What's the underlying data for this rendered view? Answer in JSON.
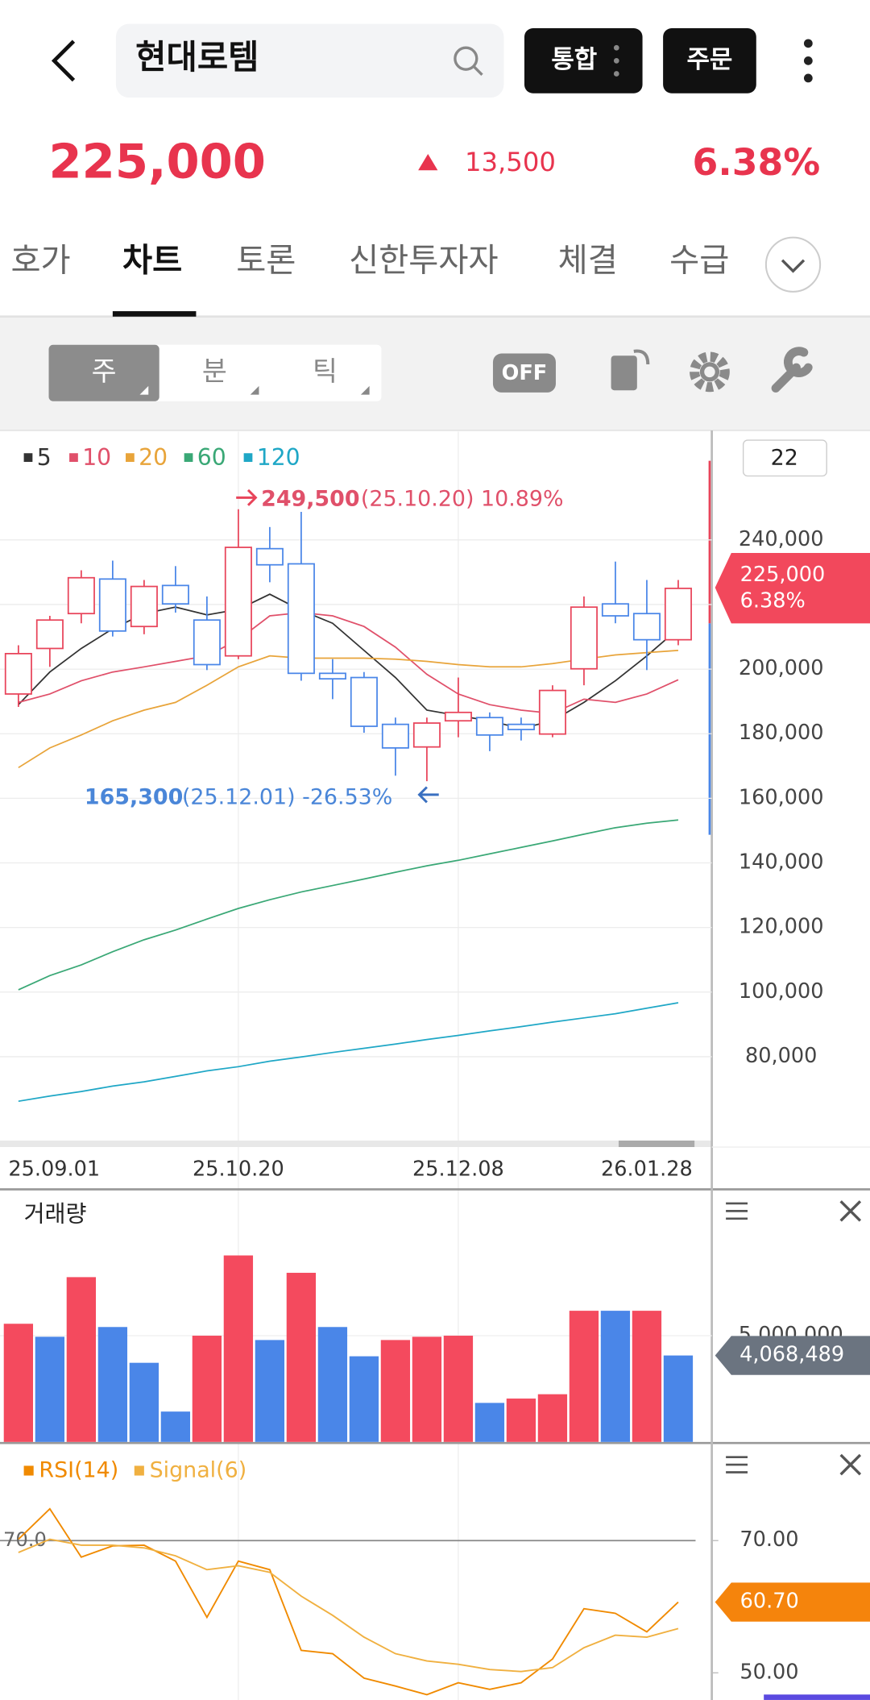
{
  "header": {
    "search": "현대로템",
    "buttons": [
      "통합",
      "주문"
    ]
  },
  "price": {
    "current": "225,000",
    "change": "13,500",
    "rate": "6.38%"
  },
  "tabs": {
    "items": [
      "호가",
      "차트",
      "토론",
      "신한투자자",
      "체결",
      "수급"
    ],
    "active": 1
  },
  "toolbar": {
    "periods": [
      "주",
      "분",
      "틱"
    ],
    "selected": 0,
    "toggle": "OFF"
  },
  "chart_data": [
    {
      "type": "candlestick",
      "visible_count": "22",
      "categories": [
        "25.09.01",
        null,
        null,
        null,
        null,
        null,
        null,
        "25.10.20",
        null,
        null,
        null,
        null,
        null,
        null,
        "25.12.08",
        null,
        null,
        null,
        null,
        null,
        "26.01.28",
        null
      ],
      "open": [
        192300,
        206400,
        217200,
        227900,
        213200,
        225900,
        215200,
        204100,
        237300,
        232600,
        198700,
        197400,
        182900,
        175900,
        184000,
        185000,
        182900,
        179900,
        200100,
        220200,
        217200,
        209100
      ],
      "high": [
        207400,
        216500,
        230600,
        233600,
        227600,
        231900,
        222500,
        249500,
        244000,
        248700,
        203100,
        199100,
        185000,
        185000,
        197400,
        186600,
        185000,
        195000,
        222500,
        233300,
        227600,
        227600
      ],
      "low": [
        188300,
        200700,
        214200,
        210100,
        210800,
        217500,
        199700,
        203100,
        226900,
        196400,
        190700,
        180300,
        167000,
        165300,
        178900,
        174600,
        177900,
        178900,
        195000,
        214200,
        199700,
        207400
      ],
      "close": [
        204800,
        215200,
        228300,
        211800,
        225600,
        220200,
        201400,
        237700,
        232300,
        198700,
        197000,
        182300,
        175600,
        183300,
        186600,
        179600,
        181300,
        193400,
        219200,
        216500,
        209100,
        225000
      ],
      "close_labels": [
        null,
        null,
        null,
        null,
        null,
        null,
        null,
        null,
        null,
        null,
        null,
        null,
        null,
        null,
        null,
        null,
        null,
        null,
        null,
        null,
        null,
        "225,000"
      ],
      "last_rate": "6.38%",
      "up_color": "#e8445a",
      "down_color": "#4a86e8",
      "series": [
        {
          "name": "5",
          "color": "#333333",
          "values": [
            189000,
            199100,
            206400,
            212500,
            217200,
            219200,
            216800,
            218500,
            223200,
            218200,
            214200,
            205800,
            197400,
            187300,
            185600,
            184000,
            181600,
            184000,
            189700,
            196400,
            204100,
            212500
          ]
        },
        {
          "name": "10",
          "color": "#e0506a",
          "values": [
            189700,
            192300,
            196400,
            199100,
            200700,
            202400,
            204100,
            209100,
            216500,
            217500,
            216500,
            213200,
            206800,
            198400,
            192300,
            189000,
            187300,
            186300,
            190700,
            189700,
            192300,
            196700
          ]
        },
        {
          "name": "20",
          "color": "#e8a43a",
          "values": [
            169500,
            175600,
            179600,
            184000,
            187300,
            189700,
            195000,
            200700,
            204100,
            203400,
            203400,
            203400,
            203100,
            202400,
            201400,
            200700,
            200700,
            201700,
            203100,
            204400,
            205100,
            205800
          ]
        },
        {
          "name": "60",
          "color": "#3aa876",
          "values": [
            100700,
            105100,
            108400,
            112500,
            116200,
            119200,
            122600,
            125900,
            128600,
            131000,
            133000,
            135000,
            137100,
            139100,
            140800,
            142800,
            144800,
            146800,
            148900,
            150900,
            152300,
            153300
          ]
        },
        {
          "name": "120",
          "color": "#1fa7c6",
          "values": [
            66200,
            67800,
            69200,
            70900,
            72200,
            73900,
            75600,
            76900,
            78600,
            79900,
            81300,
            82600,
            83900,
            85300,
            86600,
            88000,
            89300,
            90700,
            92000,
            93300,
            95000,
            96700
          ]
        }
      ],
      "annotations": [
        {
          "value": "249,500",
          "detail": "(25.10.20) 10.89%"
        },
        {
          "value": "165,300",
          "detail": "(25.12.01) -26.53%"
        }
      ],
      "ylim": [
        54700,
        272900
      ],
      "yticks": [
        {
          "value": 80000,
          "label": "80,000"
        },
        {
          "value": 100000,
          "label": "100,000"
        },
        {
          "value": 120000,
          "label": "120,000"
        },
        {
          "value": 140000,
          "label": "140,000"
        },
        {
          "value": 160000,
          "label": "160,000"
        },
        {
          "value": 180000,
          "label": "180,000"
        },
        {
          "value": 200000,
          "label": "200,000"
        },
        {
          "value": 220000,
          "label": "220,000"
        },
        {
          "value": 240000,
          "label": "240,000"
        }
      ],
      "grid": true
    },
    {
      "type": "bar",
      "title": "거래량",
      "values": [
        5561000,
        4949000,
        7755000,
        5408000,
        3724000,
        1429000,
        5000000,
        8776000,
        4796000,
        7959000,
        5408000,
        4031000,
        4796000,
        4949000,
        5000000,
        1837000,
        2041000,
        2245000,
        6173000,
        6173000,
        6173000,
        4068489
      ],
      "value_labels": [
        null,
        null,
        null,
        null,
        null,
        null,
        null,
        null,
        null,
        null,
        null,
        null,
        null,
        null,
        null,
        null,
        null,
        null,
        null,
        null,
        null,
        "4,068,489"
      ],
      "colors": [
        "#f44a5e",
        "#4a86e8",
        "#f44a5e",
        "#4a86e8",
        "#4a86e8",
        "#4a86e8",
        "#f44a5e",
        "#f44a5e",
        "#4a86e8",
        "#f44a5e",
        "#4a86e8",
        "#4a86e8",
        "#f44a5e",
        "#f44a5e",
        "#f44a5e",
        "#4a86e8",
        "#f44a5e",
        "#f44a5e",
        "#f44a5e",
        "#4a86e8",
        "#f44a5e",
        "#4a86e8"
      ],
      "ylim": [
        0,
        11734000
      ],
      "yticks": [
        {
          "value": 5000000,
          "label": "5,000,000"
        }
      ]
    },
    {
      "type": "line",
      "series": [
        {
          "name": "RSI(14)",
          "color": "#f08a00",
          "values": [
            70.2,
            74.8,
            67.5,
            69.2,
            69.3,
            66.9,
            58.4,
            66.9,
            65.6,
            53.4,
            52.9,
            49.2,
            48.0,
            46.7,
            48.5,
            47.5,
            48.5,
            52.1,
            59.7,
            59.0,
            56.2,
            60.7
          ],
          "value_labels": [
            null,
            null,
            null,
            null,
            null,
            null,
            null,
            null,
            null,
            null,
            null,
            null,
            null,
            null,
            null,
            null,
            null,
            null,
            null,
            null,
            null,
            "60.70"
          ]
        },
        {
          "name": "Signal(6)",
          "color": "#f0b040",
          "values": [
            68.2,
            70.2,
            69.3,
            69.3,
            68.9,
            67.7,
            65.6,
            66.2,
            65.2,
            61.6,
            58.7,
            55.4,
            52.9,
            51.8,
            51.3,
            50.5,
            50.2,
            50.8,
            53.8,
            55.7,
            55.4,
            56.7
          ]
        }
      ],
      "reference_line": {
        "value": 70,
        "label": "70.0"
      },
      "ylim": [
        45.9,
        84.1
      ],
      "yticks": [
        {
          "value": 70,
          "label": "70.00"
        },
        {
          "value": 50,
          "label": "50.00"
        }
      ]
    }
  ]
}
